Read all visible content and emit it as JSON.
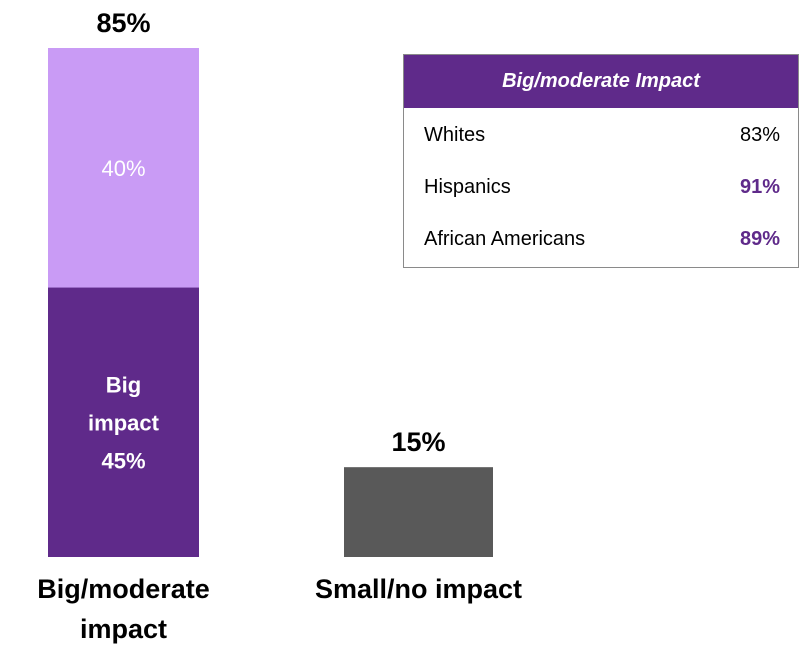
{
  "chart_data": {
    "type": "bar",
    "stacked": true,
    "categories": [
      "Big/moderate\nimpact",
      "Small/no impact"
    ],
    "totals": [
      "85%",
      "15%"
    ],
    "ylim": [
      0,
      85
    ],
    "bars": [
      {
        "category": "Big/moderate\nimpact",
        "segments": [
          {
            "value": 45,
            "label_lines": [
              "Big",
              "impact",
              "45%"
            ],
            "color": "#5f2a8a"
          },
          {
            "value": 40,
            "label_lines": [
              "40%"
            ],
            "color": "#c99bf5"
          }
        ]
      },
      {
        "category": "Small/no impact",
        "segments": [
          {
            "value": 15,
            "label_lines": [],
            "color": "#595959"
          }
        ]
      }
    ],
    "grid": false,
    "legend": "none"
  },
  "side_table": {
    "header": "Big/moderate Impact",
    "header_color": "#5f2a8a",
    "rows": [
      {
        "group": "Whites",
        "value": "83%",
        "highlight": false
      },
      {
        "group": "Hispanics",
        "value": "91%",
        "highlight": true
      },
      {
        "group": "African Americans",
        "value": "89%",
        "highlight": true
      }
    ]
  }
}
